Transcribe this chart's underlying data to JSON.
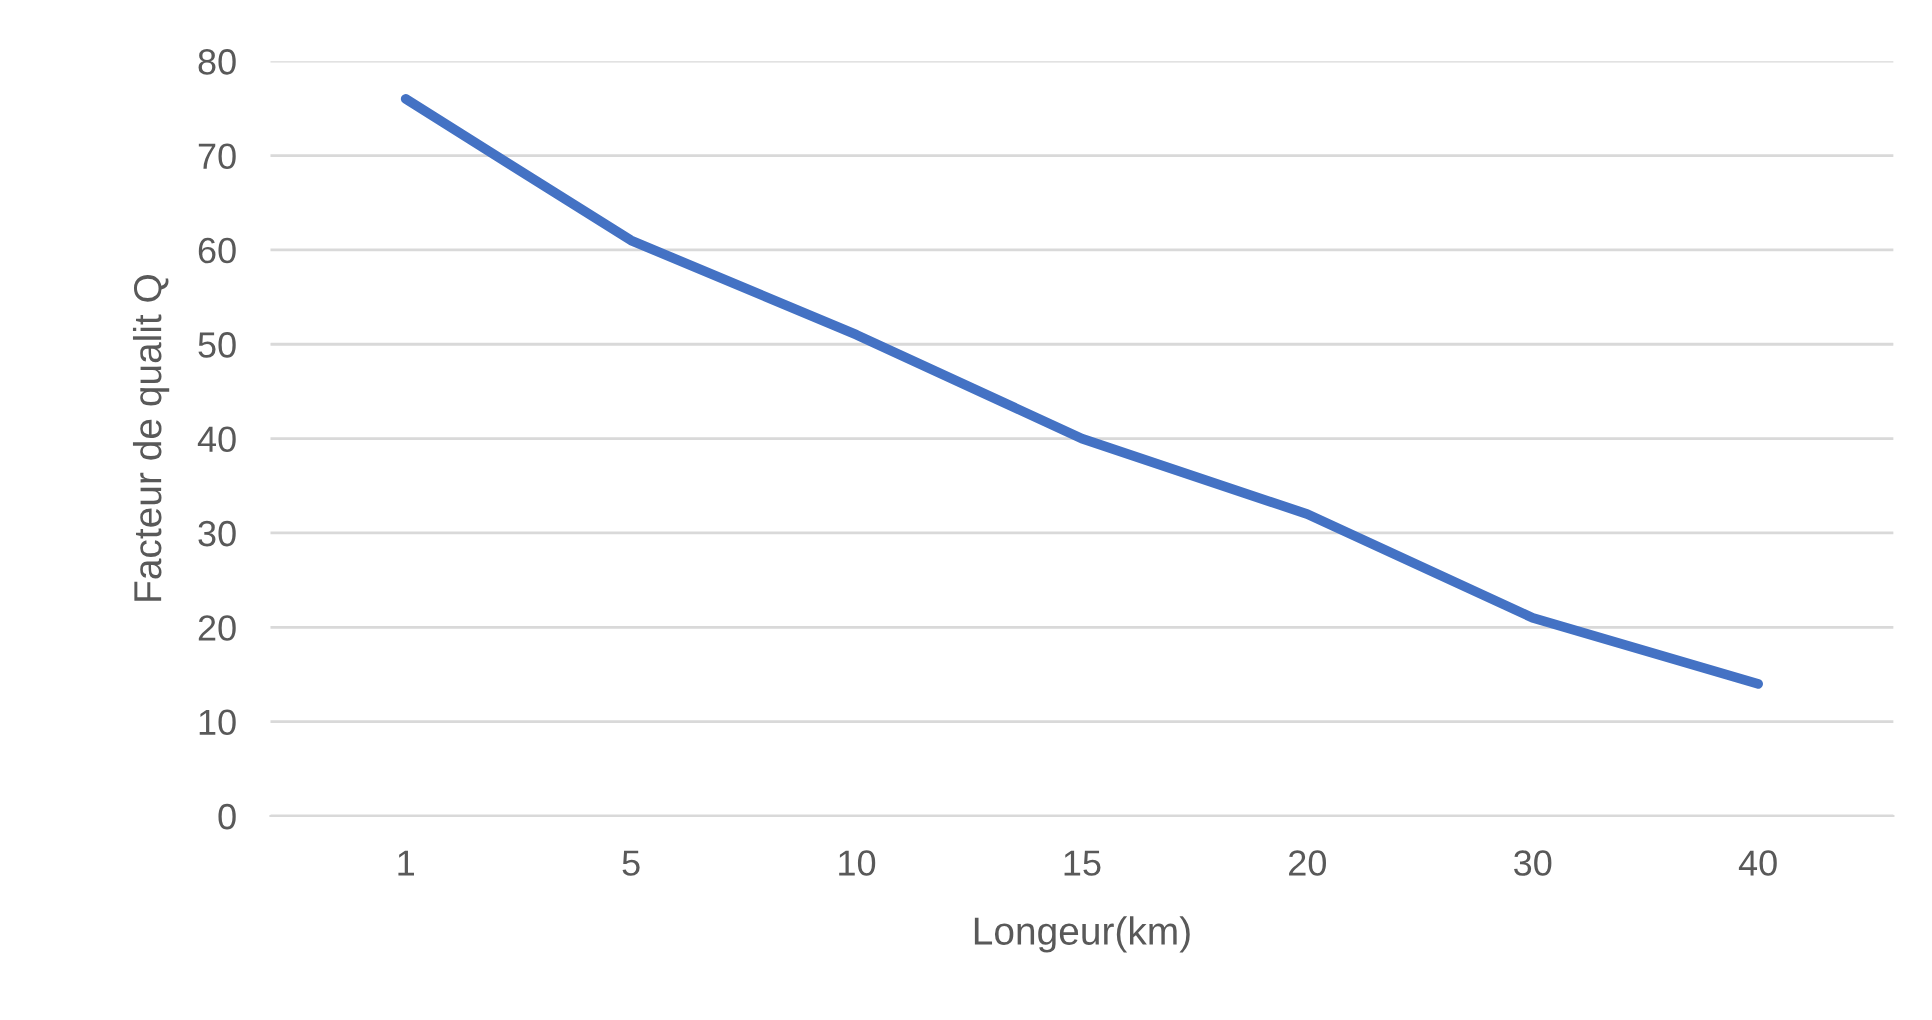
{
  "chart_data": {
    "type": "line",
    "xlabel": "Longeur(km)",
    "ylabel": "Facteur de qualit Q",
    "categories": [
      "1",
      "5",
      "10",
      "15",
      "20",
      "30",
      "40"
    ],
    "series": [
      {
        "color": "#4472c4",
        "values": [
          76,
          61,
          51,
          40,
          32,
          21,
          14
        ]
      }
    ],
    "ylim": [
      0,
      80
    ],
    "yticks": [
      0,
      10,
      20,
      30,
      40,
      50,
      60,
      70,
      80
    ],
    "grid": "y",
    "legend": false
  }
}
